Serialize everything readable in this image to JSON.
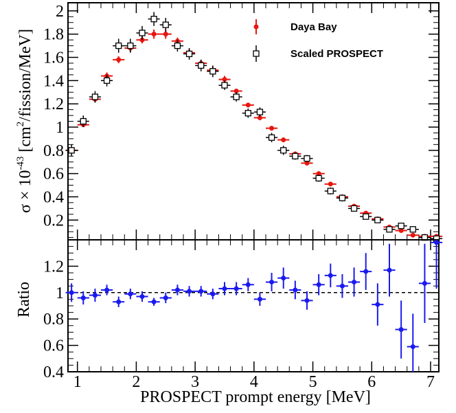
{
  "chart_data": [
    {
      "type": "scatter",
      "panel": "top",
      "xlabel": "",
      "ylabel_prefix": "σ × 10",
      "ylabel_exp": "-43",
      "ylabel_unit_pre": " [cm",
      "ylabel_unit_exp": "2",
      "ylabel_unit_post": "/fission/MeV]",
      "xlim": [
        0.84,
        7.14
      ],
      "ylim": [
        0.03,
        2.07
      ],
      "yticks": [
        0.2,
        0.4,
        0.6,
        0.8,
        1,
        1.2,
        1.4,
        1.6,
        1.8,
        2
      ],
      "ytick_labels": [
        "0.2",
        "0.4",
        "0.6",
        "0.8",
        "1",
        "1.2",
        "1.4",
        "1.6",
        "1.8",
        "2"
      ],
      "legend_position": "top-right",
      "series": [
        {
          "name": "Daya Bay",
          "color": "#e8160f",
          "marker": "filled-circle",
          "x": [
            0.9,
            1.1,
            1.3,
            1.5,
            1.7,
            1.9,
            2.1,
            2.3,
            2.5,
            2.7,
            2.9,
            3.1,
            3.3,
            3.5,
            3.7,
            3.9,
            4.1,
            4.3,
            4.5,
            4.7,
            4.9,
            5.1,
            5.3,
            5.5,
            5.7,
            5.9,
            6.1,
            6.3,
            6.5,
            6.7,
            6.9,
            7.1
          ],
          "y": [
            0.8,
            1.02,
            1.24,
            1.44,
            1.58,
            1.68,
            1.75,
            1.8,
            1.8,
            1.74,
            1.64,
            1.55,
            1.49,
            1.41,
            1.31,
            1.19,
            1.08,
            0.99,
            0.89,
            0.77,
            0.69,
            0.6,
            0.51,
            0.4,
            0.32,
            0.26,
            0.21,
            0.14,
            0.11,
            0.07,
            0.06,
            0.06
          ],
          "yerr": [
            0.02,
            0.02,
            0.02,
            0.03,
            0.03,
            0.03,
            0.03,
            0.04,
            0.04,
            0.03,
            0.03,
            0.03,
            0.03,
            0.03,
            0.02,
            0.02,
            0.02,
            0.02,
            0.02,
            0.02,
            0.02,
            0.01,
            0.01,
            0.01,
            0.01,
            0.01,
            0.01,
            0.01,
            0.01,
            0.01,
            0.01,
            0.01
          ]
        },
        {
          "name": "Scaled PROSPECT",
          "color": "#000000",
          "marker": "open-square",
          "x": [
            0.9,
            1.1,
            1.3,
            1.5,
            1.7,
            1.9,
            2.1,
            2.3,
            2.5,
            2.7,
            2.9,
            3.1,
            3.3,
            3.5,
            3.7,
            3.9,
            4.1,
            4.3,
            4.5,
            4.7,
            4.9,
            5.1,
            5.3,
            5.5,
            5.7,
            5.9,
            6.1,
            6.3,
            6.5,
            6.7,
            6.9,
            7.1
          ],
          "y": [
            0.8,
            1.05,
            1.26,
            1.4,
            1.7,
            1.7,
            1.81,
            1.93,
            1.88,
            1.7,
            1.63,
            1.53,
            1.48,
            1.36,
            1.26,
            1.12,
            1.13,
            0.91,
            0.8,
            0.75,
            0.73,
            0.56,
            0.45,
            0.39,
            0.3,
            0.23,
            0.2,
            0.12,
            0.15,
            0.12,
            0.05,
            0.04
          ],
          "yerr": [
            0.05,
            0.05,
            0.05,
            0.05,
            0.06,
            0.06,
            0.06,
            0.06,
            0.06,
            0.05,
            0.05,
            0.05,
            0.05,
            0.04,
            0.04,
            0.04,
            0.04,
            0.04,
            0.04,
            0.03,
            0.03,
            0.03,
            0.03,
            0.03,
            0.02,
            0.02,
            0.02,
            0.02,
            0.02,
            0.02,
            0.02,
            0.02
          ]
        }
      ],
      "xerr": 0.1
    },
    {
      "type": "scatter",
      "panel": "bottom",
      "xlabel": "PROSPECT prompt energy [MeV]",
      "ylabel": "Ratio",
      "xlim": [
        0.84,
        7.14
      ],
      "ylim": [
        0.4,
        1.4
      ],
      "xticks": [
        1,
        2,
        3,
        4,
        5,
        6,
        7
      ],
      "xtick_labels": [
        "1",
        "2",
        "3",
        "4",
        "5",
        "6",
        "7"
      ],
      "yticks": [
        0.4,
        0.6,
        0.8,
        1,
        1.2
      ],
      "ytick_labels": [
        "0.4",
        "0.6",
        "0.8",
        "1",
        "1.2"
      ],
      "reference_line": 1,
      "series": [
        {
          "color": "#1a1aee",
          "marker": "filled-circle",
          "x": [
            0.9,
            1.1,
            1.3,
            1.5,
            1.7,
            1.9,
            2.1,
            2.3,
            2.5,
            2.7,
            2.9,
            3.1,
            3.3,
            3.5,
            3.7,
            3.9,
            4.1,
            4.3,
            4.5,
            4.7,
            4.9,
            5.1,
            5.3,
            5.5,
            5.7,
            5.9,
            6.1,
            6.3,
            6.5,
            6.7,
            6.9,
            7.1
          ],
          "y": [
            1.0,
            0.96,
            0.98,
            1.02,
            0.93,
            0.99,
            0.97,
            0.93,
            0.96,
            1.02,
            1.01,
            1.01,
            0.99,
            1.03,
            1.03,
            1.06,
            0.95,
            1.08,
            1.11,
            1.02,
            0.94,
            1.06,
            1.13,
            1.05,
            1.08,
            1.16,
            0.91,
            1.17,
            0.72,
            0.59,
            1.07,
            1.38
          ],
          "yerr": [
            0.07,
            0.05,
            0.05,
            0.04,
            0.04,
            0.04,
            0.04,
            0.03,
            0.04,
            0.04,
            0.04,
            0.04,
            0.04,
            0.05,
            0.05,
            0.05,
            0.05,
            0.07,
            0.08,
            0.07,
            0.07,
            0.08,
            0.09,
            0.09,
            0.11,
            0.14,
            0.16,
            0.2,
            0.22,
            0.25,
            0.3,
            0.35
          ]
        }
      ],
      "xerr": 0.1
    }
  ]
}
